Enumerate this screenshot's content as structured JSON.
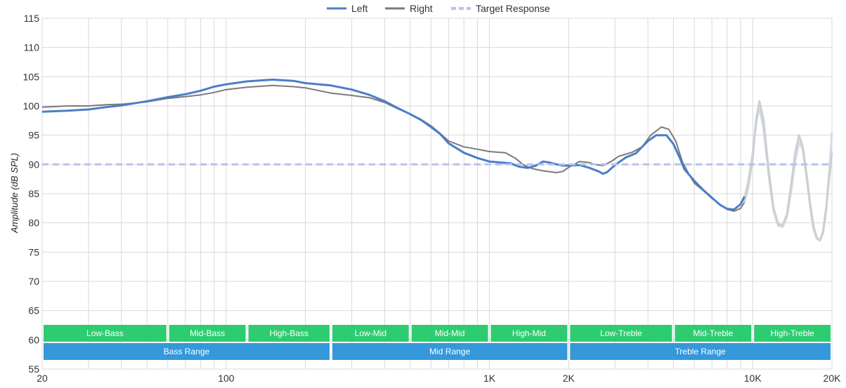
{
  "chart_data": {
    "type": "line",
    "title": "",
    "xlabel": "",
    "ylabel": "Amplitude (dB SPL)",
    "x_scale": "log",
    "xlim": [
      20,
      20000
    ],
    "ylim": [
      55,
      115
    ],
    "y_ticks": [
      55,
      60,
      65,
      70,
      75,
      80,
      85,
      90,
      95,
      100,
      105,
      110,
      115
    ],
    "x_tick_labels": [
      {
        "value": 20,
        "label": "20"
      },
      {
        "value": 100,
        "label": "100"
      },
      {
        "value": 1000,
        "label": "1K"
      },
      {
        "value": 2000,
        "label": "2K"
      },
      {
        "value": 10000,
        "label": "10K"
      },
      {
        "value": 20000,
        "label": "20K"
      }
    ],
    "grid": true,
    "legend": {
      "position": "top-center",
      "items": [
        {
          "name": "Left",
          "color": "#4a7ec8",
          "style": "solid"
        },
        {
          "name": "Right",
          "color": "#7a7a7a",
          "style": "solid"
        },
        {
          "name": "Target Response",
          "color": "#b8c0f2",
          "style": "dashed"
        }
      ]
    },
    "series": [
      {
        "name": "Left",
        "color": "#4a7ec8",
        "faded_color": "#d5dde8",
        "fade_from": 9300,
        "points": [
          [
            20,
            99
          ],
          [
            25,
            99.2
          ],
          [
            30,
            99.4
          ],
          [
            35,
            99.8
          ],
          [
            40,
            100.1
          ],
          [
            50,
            100.8
          ],
          [
            60,
            101.5
          ],
          [
            70,
            102
          ],
          [
            80,
            102.6
          ],
          [
            90,
            103.3
          ],
          [
            100,
            103.7
          ],
          [
            120,
            104.2
          ],
          [
            150,
            104.5
          ],
          [
            180,
            104.3
          ],
          [
            200,
            103.9
          ],
          [
            250,
            103.5
          ],
          [
            300,
            102.8
          ],
          [
            350,
            101.9
          ],
          [
            400,
            100.8
          ],
          [
            450,
            99.6
          ],
          [
            500,
            98.6
          ],
          [
            550,
            97.6
          ],
          [
            600,
            96.4
          ],
          [
            650,
            95.2
          ],
          [
            700,
            93.6
          ],
          [
            800,
            92
          ],
          [
            900,
            91.1
          ],
          [
            1000,
            90.5
          ],
          [
            1200,
            90.2
          ],
          [
            1300,
            89.6
          ],
          [
            1400,
            89.4
          ],
          [
            1500,
            89.8
          ],
          [
            1600,
            90.5
          ],
          [
            1700,
            90.3
          ],
          [
            1800,
            90
          ],
          [
            1900,
            89.8
          ],
          [
            2000,
            89.8
          ],
          [
            2200,
            89.9
          ],
          [
            2400,
            89.4
          ],
          [
            2600,
            88.8
          ],
          [
            2700,
            88.4
          ],
          [
            2800,
            88.7
          ],
          [
            3000,
            89.9
          ],
          [
            3300,
            91.2
          ],
          [
            3600,
            91.9
          ],
          [
            4000,
            94
          ],
          [
            4300,
            95
          ],
          [
            4700,
            95
          ],
          [
            5000,
            93.5
          ],
          [
            5300,
            91
          ],
          [
            5500,
            89.2
          ],
          [
            6000,
            87.2
          ],
          [
            6500,
            85.6
          ],
          [
            7000,
            84.3
          ],
          [
            7500,
            83.1
          ],
          [
            8000,
            82.4
          ],
          [
            8500,
            82.3
          ],
          [
            9000,
            83.2
          ],
          [
            9300,
            84.5
          ],
          [
            9600,
            87
          ],
          [
            10000,
            92
          ],
          [
            10300,
            97
          ],
          [
            10600,
            99.8
          ],
          [
            11000,
            96
          ],
          [
            11500,
            88
          ],
          [
            12000,
            82
          ],
          [
            12500,
            79.5
          ],
          [
            13000,
            79.3
          ],
          [
            13500,
            81
          ],
          [
            14000,
            85.5
          ],
          [
            14500,
            90.5
          ],
          [
            15000,
            93.8
          ],
          [
            15500,
            92.5
          ],
          [
            16000,
            88
          ],
          [
            16500,
            83
          ],
          [
            17000,
            79
          ],
          [
            17500,
            77.3
          ],
          [
            18000,
            77
          ],
          [
            18500,
            78.2
          ],
          [
            19000,
            82
          ],
          [
            19500,
            88.5
          ],
          [
            20000,
            95.5
          ]
        ]
      },
      {
        "name": "Right",
        "color": "#7a7a7a",
        "faded_color": "#cccfd3",
        "fade_from": 9300,
        "points": [
          [
            20,
            99.8
          ],
          [
            25,
            100
          ],
          [
            30,
            100
          ],
          [
            35,
            100.2
          ],
          [
            40,
            100.3
          ],
          [
            50,
            100.7
          ],
          [
            60,
            101.3
          ],
          [
            70,
            101.6
          ],
          [
            80,
            101.9
          ],
          [
            90,
            102.3
          ],
          [
            100,
            102.8
          ],
          [
            120,
            103.2
          ],
          [
            150,
            103.5
          ],
          [
            180,
            103.3
          ],
          [
            200,
            103.1
          ],
          [
            250,
            102.2
          ],
          [
            300,
            101.8
          ],
          [
            350,
            101.4
          ],
          [
            400,
            100.6
          ],
          [
            450,
            99.5
          ],
          [
            500,
            98.6
          ],
          [
            550,
            97.7
          ],
          [
            600,
            96.6
          ],
          [
            650,
            95.3
          ],
          [
            700,
            94
          ],
          [
            800,
            93
          ],
          [
            900,
            92.6
          ],
          [
            1000,
            92.2
          ],
          [
            1150,
            92
          ],
          [
            1250,
            91.1
          ],
          [
            1350,
            89.9
          ],
          [
            1450,
            89.3
          ],
          [
            1600,
            88.9
          ],
          [
            1800,
            88.6
          ],
          [
            1900,
            88.8
          ],
          [
            2000,
            89.5
          ],
          [
            2200,
            90.5
          ],
          [
            2400,
            90.3
          ],
          [
            2500,
            90
          ],
          [
            2700,
            89.8
          ],
          [
            2900,
            90.5
          ],
          [
            3100,
            91.4
          ],
          [
            3500,
            92.1
          ],
          [
            3800,
            93
          ],
          [
            4100,
            95
          ],
          [
            4500,
            96.4
          ],
          [
            4800,
            96
          ],
          [
            5100,
            94
          ],
          [
            5400,
            90.5
          ],
          [
            5700,
            88.5
          ],
          [
            6000,
            86.8
          ],
          [
            6500,
            85.5
          ],
          [
            7000,
            84.2
          ],
          [
            7500,
            83.2
          ],
          [
            8000,
            82.3
          ],
          [
            8500,
            82
          ],
          [
            9000,
            82.5
          ],
          [
            9300,
            83.5
          ],
          [
            9600,
            86
          ],
          [
            10000,
            91
          ],
          [
            10300,
            97.5
          ],
          [
            10600,
            100.8
          ],
          [
            11000,
            97.5
          ],
          [
            11500,
            89
          ],
          [
            12000,
            82.5
          ],
          [
            12500,
            79.8
          ],
          [
            13000,
            79.6
          ],
          [
            13500,
            81.5
          ],
          [
            14000,
            86.5
          ],
          [
            14500,
            92
          ],
          [
            15000,
            95
          ],
          [
            15500,
            93
          ],
          [
            16000,
            88.5
          ],
          [
            16500,
            83.5
          ],
          [
            17000,
            79.5
          ],
          [
            17500,
            77.5
          ],
          [
            18000,
            77
          ],
          [
            18500,
            78.5
          ],
          [
            19000,
            82.5
          ],
          [
            19500,
            87.5
          ],
          [
            20000,
            92
          ]
        ]
      },
      {
        "name": "Target Response",
        "color": "#b8c0f2",
        "dashed": true,
        "points": [
          [
            20,
            90
          ],
          [
            20000,
            90
          ]
        ]
      }
    ],
    "bands_upper": [
      {
        "label": "Low-Bass",
        "from": 20,
        "to": 60
      },
      {
        "label": "Mid-Bass",
        "from": 60,
        "to": 120
      },
      {
        "label": "High-Bass",
        "from": 120,
        "to": 250
      },
      {
        "label": "Low-Mid",
        "from": 250,
        "to": 500
      },
      {
        "label": "Mid-Mid",
        "from": 500,
        "to": 1000
      },
      {
        "label": "High-Mid",
        "from": 1000,
        "to": 2000
      },
      {
        "label": "Low-Treble",
        "from": 2000,
        "to": 5000
      },
      {
        "label": "Mid-Treble",
        "from": 5000,
        "to": 10000
      },
      {
        "label": "High-Treble",
        "from": 10000,
        "to": 20000
      }
    ],
    "bands_lower": [
      {
        "label": "Bass Range",
        "from": 20,
        "to": 250
      },
      {
        "label": "Mid Range",
        "from": 250,
        "to": 2000
      },
      {
        "label": "Treble Range",
        "from": 2000,
        "to": 20000
      }
    ],
    "band_colors": {
      "upper": "#2ecc71",
      "lower": "#3498db"
    }
  }
}
